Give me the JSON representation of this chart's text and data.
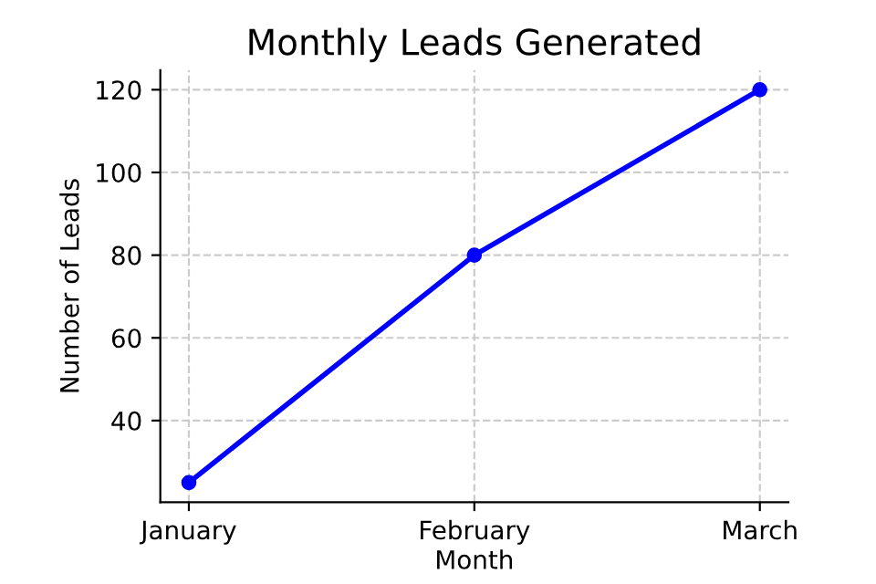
{
  "chart_data": {
    "type": "line",
    "title": "Monthly Leads Generated",
    "xlabel": "Month",
    "ylabel": "Number of Leads",
    "categories": [
      "January",
      "February",
      "March"
    ],
    "series": [
      {
        "color": "#0000ff",
        "values": [
          25,
          80,
          120
        ]
      }
    ],
    "ylim": [
      20.25,
      124.75
    ],
    "yticks": [
      40,
      60,
      80,
      100,
      120
    ],
    "grid": true,
    "marker": "circle",
    "line_style": "solid",
    "legend": false
  }
}
